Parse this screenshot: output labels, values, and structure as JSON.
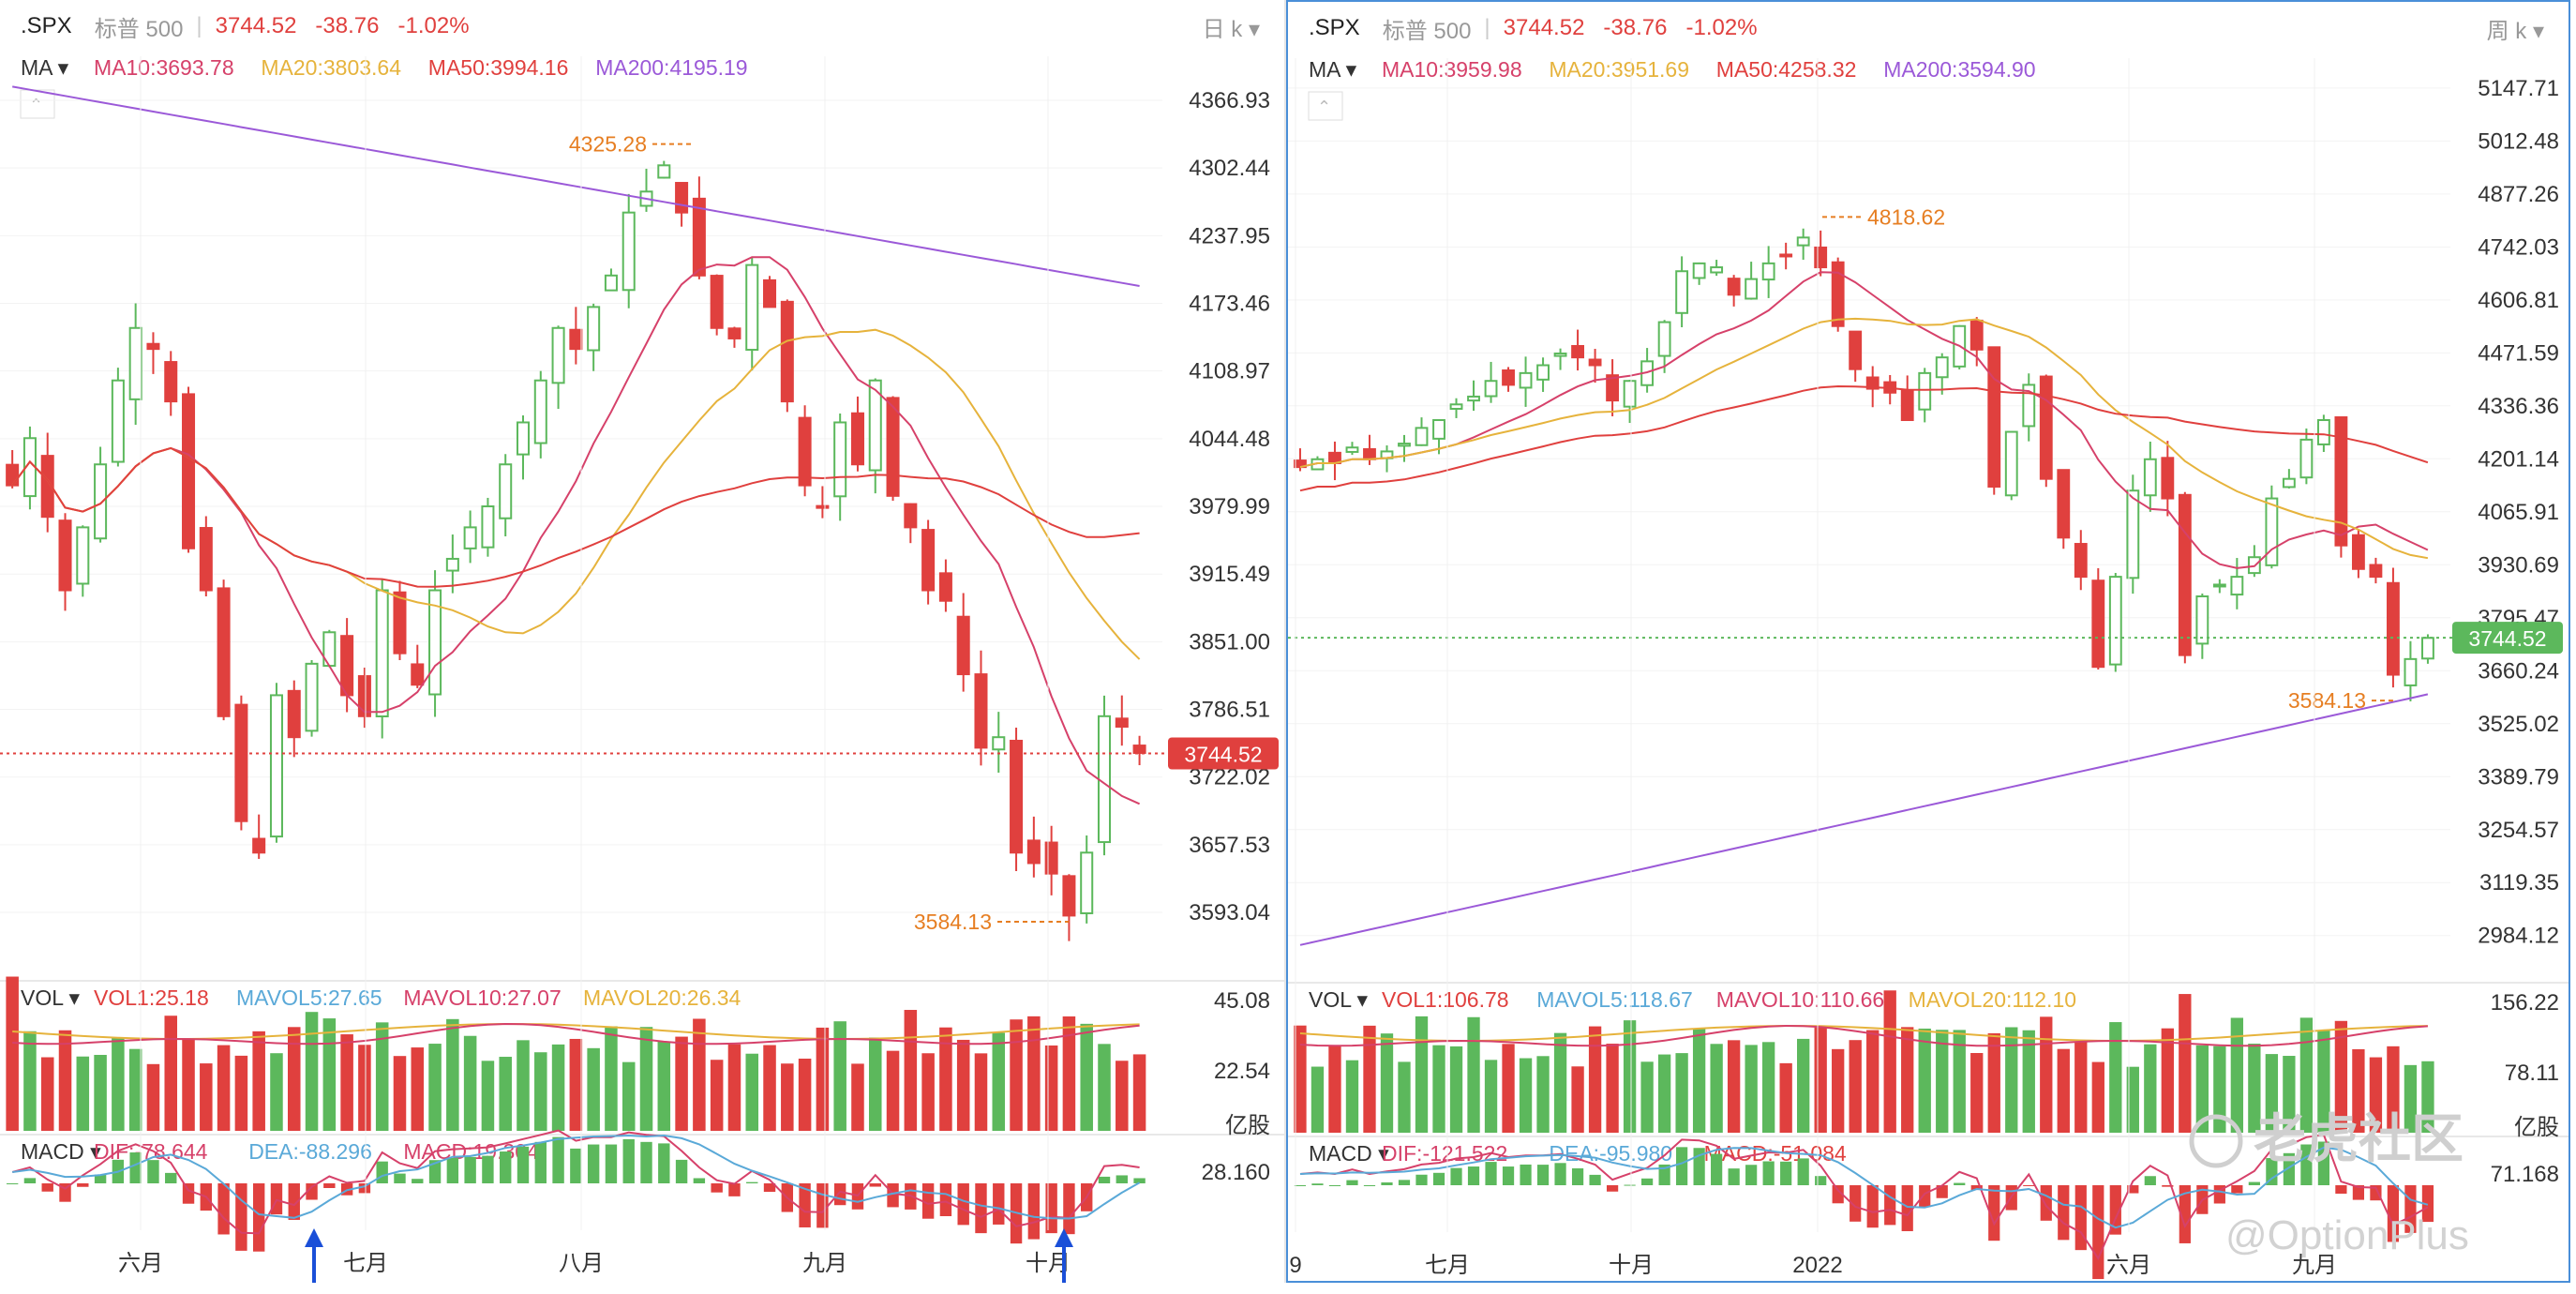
{
  "left": {
    "symbol": ".SPX",
    "name": "标普 500",
    "price": "3744.52",
    "change": "-38.76",
    "pct": "-1.02%",
    "period": "日 k",
    "ma_title": "MA",
    "ma": [
      {
        "label": "MA10:3693.78",
        "color": "#d6416a"
      },
      {
        "label": "MA20:3803.64",
        "color": "#e6b33c"
      },
      {
        "label": "MA50:3994.16",
        "color": "#e0403e"
      },
      {
        "label": "MA200:4195.19",
        "color": "#9b59d8"
      }
    ],
    "vol_title": "VOL",
    "vol": [
      {
        "label": "VOL1:25.18",
        "color": "#e0403e"
      },
      {
        "label": "MAVOL5:27.65",
        "color": "#5aa9d8"
      },
      {
        "label": "MAVOL10:27.07",
        "color": "#d6416a"
      },
      {
        "label": "MAVOL20:26.34",
        "color": "#e6b33c"
      }
    ],
    "macd_title": "MACD",
    "macd": [
      {
        "label": "DIF:-78.644",
        "color": "#d6416a"
      },
      {
        "label": "DEA:-88.296",
        "color": "#5aa9d8"
      },
      {
        "label": "MACD:19.304",
        "color": "#d6416a"
      }
    ],
    "price_ticks": [
      "4366.93",
      "4302.44",
      "4237.95",
      "4173.46",
      "4108.97",
      "4044.48",
      "3979.99",
      "3915.49",
      "3851.00",
      "3786.51",
      "3722.02",
      "3657.53",
      "3593.04"
    ],
    "vol_ticks": [
      "45.08",
      "22.54",
      "亿股"
    ],
    "macd_ticks": [
      "28.160"
    ],
    "x_ticks": [
      "六月",
      "七月",
      "八月",
      "九月",
      "十月"
    ],
    "high_label": "4325.28",
    "low_label": "3584.13",
    "price_tag": "3744.52"
  },
  "right": {
    "symbol": ".SPX",
    "name": "标普 500",
    "price": "3744.52",
    "change": "-38.76",
    "pct": "-1.02%",
    "period": "周 k",
    "ma_title": "MA",
    "ma": [
      {
        "label": "MA10:3959.98",
        "color": "#d6416a"
      },
      {
        "label": "MA20:3951.69",
        "color": "#e6b33c"
      },
      {
        "label": "MA50:4258.32",
        "color": "#e0403e"
      },
      {
        "label": "MA200:3594.90",
        "color": "#9b59d8"
      }
    ],
    "vol_title": "VOL",
    "vol": [
      {
        "label": "VOL1:106.78",
        "color": "#e0403e"
      },
      {
        "label": "MAVOL5:118.67",
        "color": "#5aa9d8"
      },
      {
        "label": "MAVOL10:110.66",
        "color": "#d6416a"
      },
      {
        "label": "MAVOL20:112.10",
        "color": "#e6b33c"
      }
    ],
    "macd_title": "MACD",
    "macd": [
      {
        "label": "DIF:-121.522",
        "color": "#d6416a"
      },
      {
        "label": "DEA:-95.980",
        "color": "#5aa9d8"
      },
      {
        "label": "MACD:-51.084",
        "color": "#e0403e"
      }
    ],
    "price_ticks": [
      "5147.71",
      "5012.48",
      "4877.26",
      "4742.03",
      "4606.81",
      "4471.59",
      "4336.36",
      "4201.14",
      "4065.91",
      "3930.69",
      "3795.47",
      "3660.24",
      "3525.02",
      "3389.79",
      "3254.57",
      "3119.35",
      "2984.12"
    ],
    "vol_ticks": [
      "156.22",
      "78.11",
      "亿股"
    ],
    "macd_ticks": [
      "71.168"
    ],
    "x_ticks": [
      "9",
      "七月",
      "十月",
      "2022",
      "六月",
      "九月"
    ],
    "high_label": "4818.62",
    "low_label": "3584.13",
    "price_tag": "3744.52"
  },
  "watermark": {
    "logo": "老虎社区",
    "handle": "@OptionPlus"
  },
  "chart_data": [
    {
      "type": "candlestick",
      "title": ".SPX 标普 500 日 k",
      "x_ticks": [
        "六月",
        "七月",
        "八月",
        "九月",
        "十月"
      ],
      "ylim": [
        3560,
        4400
      ],
      "last_close": 3744.52,
      "high": 4325.28,
      "low": 3584.13,
      "close_path": [
        4000,
        4045,
        3970,
        3900,
        3960,
        4020,
        4100,
        4150,
        4130,
        4080,
        3940,
        3900,
        3780,
        3680,
        3650,
        3800,
        3760,
        3830,
        3860,
        3800,
        3780,
        3900,
        3840,
        3810,
        3900,
        3930,
        3960,
        3980,
        4020,
        4060,
        4100,
        4150,
        4130,
        4170,
        4200,
        4260,
        4280,
        4305,
        4260,
        4200,
        4150,
        4140,
        4210,
        4170,
        4080,
        4000,
        3980,
        4060,
        4020,
        4100,
        3990,
        3960,
        3900,
        3890,
        3820,
        3750,
        3760,
        3650,
        3640,
        3630,
        3590,
        3650,
        3780,
        3770,
        3745
      ],
      "ma_series": [
        {
          "name": "MA10",
          "last": 3693.78
        },
        {
          "name": "MA20",
          "last": 3803.64
        },
        {
          "name": "MA50",
          "last": 3994.16
        },
        {
          "name": "MA200",
          "last": 4195.19
        }
      ],
      "volume_last": 25.18,
      "macd": {
        "DIF": -78.644,
        "DEA": -88.296,
        "MACD": 19.304
      }
    },
    {
      "type": "candlestick",
      "title": ".SPX 标普 500 周 k",
      "x_ticks": [
        "9",
        "七月",
        "十月",
        "2022",
        "六月",
        "九月"
      ],
      "ylim": [
        2950,
        5200
      ],
      "last_close": 3744.52,
      "high": 4818.62,
      "low": 3584.13,
      "close_path": [
        4180,
        4200,
        4190,
        4230,
        4200,
        4220,
        4240,
        4280,
        4300,
        4340,
        4360,
        4400,
        4390,
        4420,
        4440,
        4470,
        4460,
        4440,
        4350,
        4400,
        4450,
        4550,
        4680,
        4700,
        4690,
        4620,
        4660,
        4700,
        4720,
        4766,
        4690,
        4540,
        4430,
        4380,
        4370,
        4300,
        4420,
        4460,
        4540,
        4480,
        4130,
        4270,
        4390,
        4150,
        4000,
        3900,
        3670,
        3900,
        4120,
        4200,
        4100,
        3700,
        3850,
        3880,
        3900,
        3950,
        4100,
        4150,
        4250,
        4300,
        3980,
        3920,
        3900,
        3650,
        3690,
        3744
      ],
      "ma_series": [
        {
          "name": "MA10",
          "last": 3959.98
        },
        {
          "name": "MA20",
          "last": 3951.69
        },
        {
          "name": "MA50",
          "last": 4258.32
        },
        {
          "name": "MA200",
          "last": 3594.9
        }
      ],
      "volume_last": 106.78,
      "macd": {
        "DIF": -121.522,
        "DEA": -95.98,
        "MACD": -51.084
      }
    }
  ]
}
